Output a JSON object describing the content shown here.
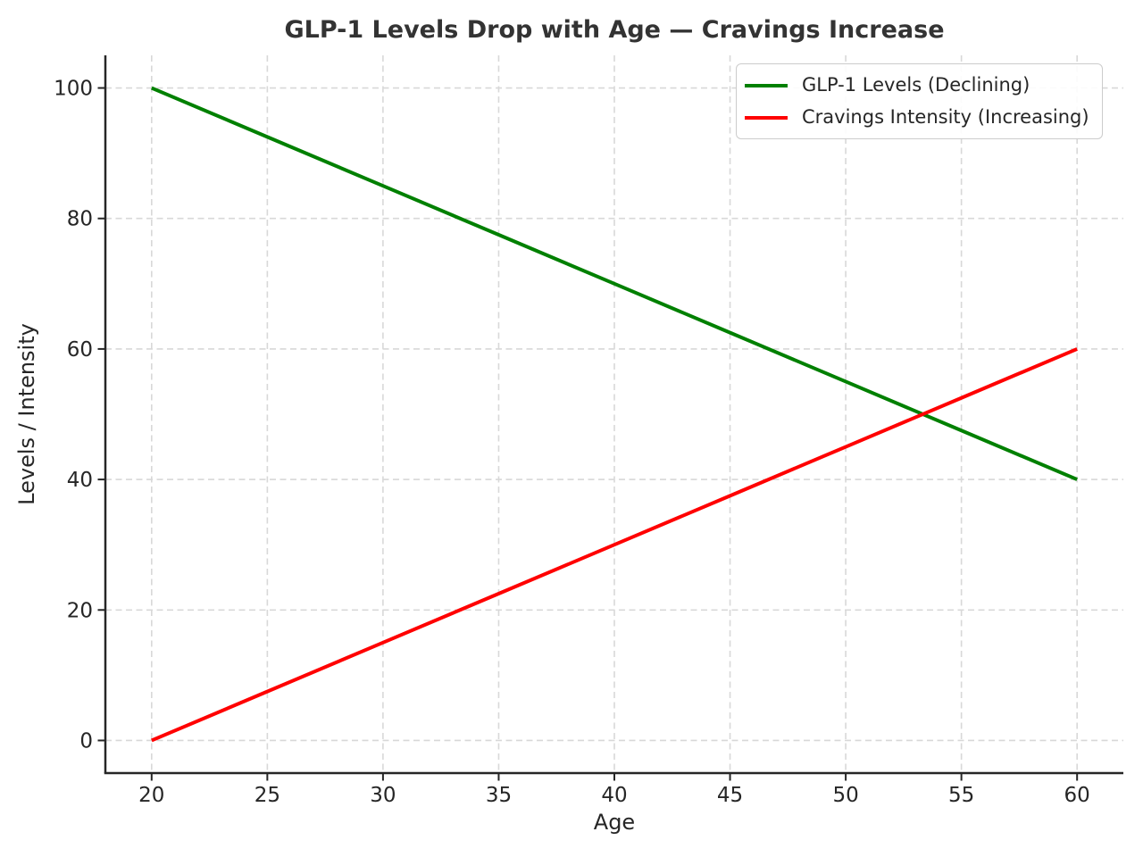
{
  "figure": {
    "background": "#ffffff",
    "title_color": "#333333",
    "spine_color": "#262626",
    "grid_color": "#d8d8d8",
    "tick_label_color": "#262626"
  },
  "chart_data": {
    "type": "line",
    "title": "GLP-1 Levels Drop with Age — Cravings Increase",
    "xlabel": "Age",
    "ylabel": "Levels / Intensity",
    "x": [
      20,
      25,
      30,
      35,
      40,
      45,
      50,
      55,
      60
    ],
    "series": [
      {
        "name": "GLP-1 Levels (Declining)",
        "color": "#008000",
        "values": [
          100,
          92.5,
          85,
          77.5,
          70,
          62.5,
          55,
          47.5,
          40
        ]
      },
      {
        "name": "Cravings Intensity (Increasing)",
        "color": "#ff0000",
        "values": [
          0,
          7.5,
          15,
          22.5,
          30,
          37.5,
          45,
          52.5,
          60
        ]
      }
    ],
    "xticks": [
      20,
      25,
      30,
      35,
      40,
      45,
      50,
      55,
      60
    ],
    "yticks": [
      0,
      20,
      40,
      60,
      80,
      100
    ],
    "xlim": [
      18,
      62
    ],
    "ylim": [
      -5,
      105
    ],
    "grid": true,
    "grid_style": "dashed",
    "legend_position": "upper right"
  },
  "legend": {
    "entries": [
      {
        "label": "GLP-1 Levels (Declining)",
        "color": "#008000"
      },
      {
        "label": "Cravings Intensity (Increasing)",
        "color": "#ff0000"
      }
    ]
  }
}
